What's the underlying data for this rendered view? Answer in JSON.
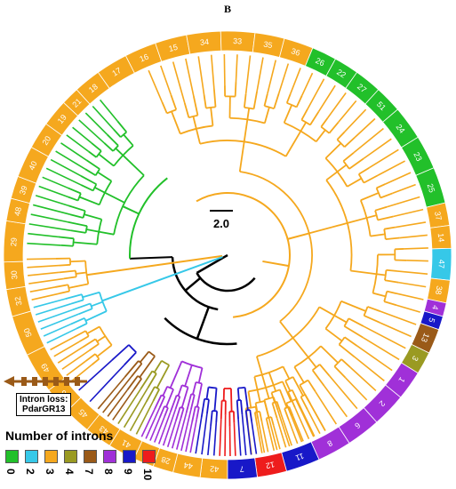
{
  "panel_label": "B",
  "scale_bar_label": "2.0",
  "intron_loss": {
    "line1": "Intron loss:",
    "line2": "PdarGR13"
  },
  "legend": {
    "title": "Number of introns",
    "items": [
      {
        "label": "0",
        "color": "#22c02a"
      },
      {
        "label": "2",
        "color": "#36c8e8"
      },
      {
        "label": "3",
        "color": "#f5a81e"
      },
      {
        "label": "4",
        "color": "#9a9a22"
      },
      {
        "label": "7",
        "color": "#9a5a18"
      },
      {
        "label": "8",
        "color": "#a030d8"
      },
      {
        "label": "9",
        "color": "#1818c8"
      },
      {
        "label": "10",
        "color": "#ee1c1c"
      }
    ]
  },
  "ring": {
    "segments": [
      {
        "label": "42",
        "color": "#f5a81e"
      },
      {
        "label": "44",
        "color": "#f5a81e"
      },
      {
        "label": "28",
        "color": "#f5a81e"
      },
      {
        "label": "31",
        "color": "#f5a81e"
      },
      {
        "label": "41",
        "color": "#f5a81e"
      },
      {
        "label": "43",
        "color": "#f5a81e"
      },
      {
        "label": "45",
        "color": "#f5a81e"
      },
      {
        "label": "46",
        "color": "#f5a81e"
      },
      {
        "label": "49",
        "color": "#f5a81e"
      },
      {
        "label": "50",
        "color": "#f5a81e"
      },
      {
        "label": "32",
        "color": "#f5a81e"
      },
      {
        "label": "30",
        "color": "#f5a81e"
      },
      {
        "label": "29",
        "color": "#f5a81e"
      },
      {
        "label": "48",
        "color": "#f5a81e"
      },
      {
        "label": "39",
        "color": "#f5a81e"
      },
      {
        "label": "40",
        "color": "#f5a81e"
      },
      {
        "label": "20",
        "color": "#f5a81e"
      },
      {
        "label": "19",
        "color": "#f5a81e"
      },
      {
        "label": "21",
        "color": "#f5a81e"
      },
      {
        "label": "18",
        "color": "#f5a81e"
      },
      {
        "label": "17",
        "color": "#f5a81e"
      },
      {
        "label": "16",
        "color": "#f5a81e"
      },
      {
        "label": "15",
        "color": "#f5a81e"
      },
      {
        "label": "34",
        "color": "#f5a81e"
      },
      {
        "label": "33",
        "color": "#f5a81e"
      },
      {
        "label": "35",
        "color": "#f5a81e"
      },
      {
        "label": "36",
        "color": "#f5a81e"
      },
      {
        "label": "26",
        "color": "#22c02a"
      },
      {
        "label": "22",
        "color": "#22c02a"
      },
      {
        "label": "27",
        "color": "#22c02a"
      },
      {
        "label": "51",
        "color": "#22c02a"
      },
      {
        "label": "24",
        "color": "#22c02a"
      },
      {
        "label": "23",
        "color": "#22c02a"
      },
      {
        "label": "25",
        "color": "#22c02a"
      },
      {
        "label": "37",
        "color": "#f5a81e"
      },
      {
        "label": "14",
        "color": "#f5a81e"
      },
      {
        "label": "47",
        "color": "#36c8e8"
      },
      {
        "label": "38",
        "color": "#f5a81e"
      },
      {
        "label": "4",
        "color": "#a030d8"
      },
      {
        "label": "5",
        "color": "#1818c8"
      },
      {
        "label": "13",
        "color": "#9a5a18"
      },
      {
        "label": "3",
        "color": "#9a9a22"
      },
      {
        "label": "1",
        "color": "#a030d8"
      },
      {
        "label": "2",
        "color": "#a030d8"
      },
      {
        "label": "6",
        "color": "#a030d8"
      },
      {
        "label": "8",
        "color": "#a030d8"
      },
      {
        "label": "11",
        "color": "#1818c8"
      },
      {
        "label": "12",
        "color": "#ee1c1c"
      },
      {
        "label": "7",
        "color": "#1818c8"
      }
    ]
  }
}
